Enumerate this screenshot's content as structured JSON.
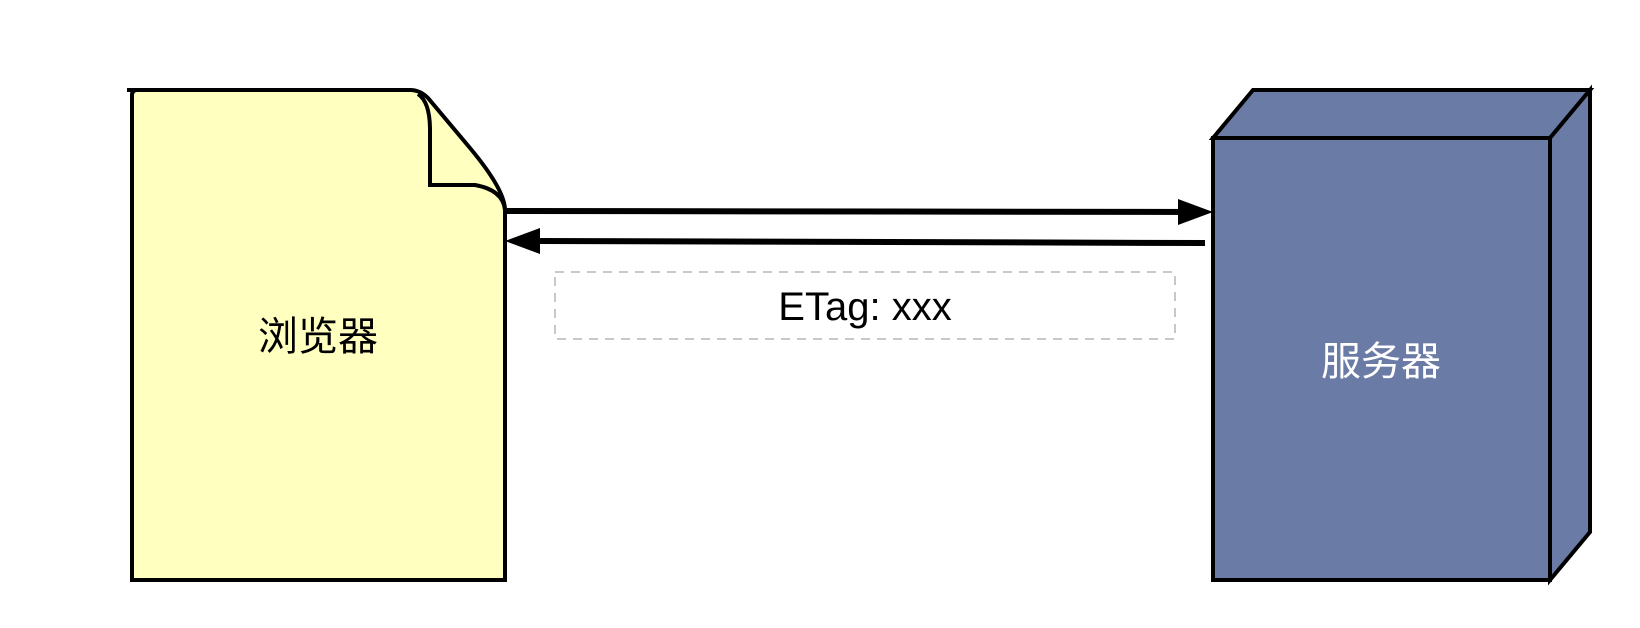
{
  "nodes": {
    "browser": {
      "label": "浏览器",
      "shape": "document",
      "fill": "#FFFFC0",
      "text_color": "#000000"
    },
    "server": {
      "label": "服务器",
      "shape": "3d-box",
      "fill": "#6A7BA6",
      "text_color": "#FFFFFF"
    }
  },
  "edges": {
    "request": {
      "from": "browser",
      "to": "server"
    },
    "response": {
      "from": "server",
      "to": "browser",
      "label": "ETag: xxx",
      "label_border": "#C8C8C8"
    }
  },
  "colors": {
    "stroke": "#000000",
    "background": "#FFFFFF"
  }
}
